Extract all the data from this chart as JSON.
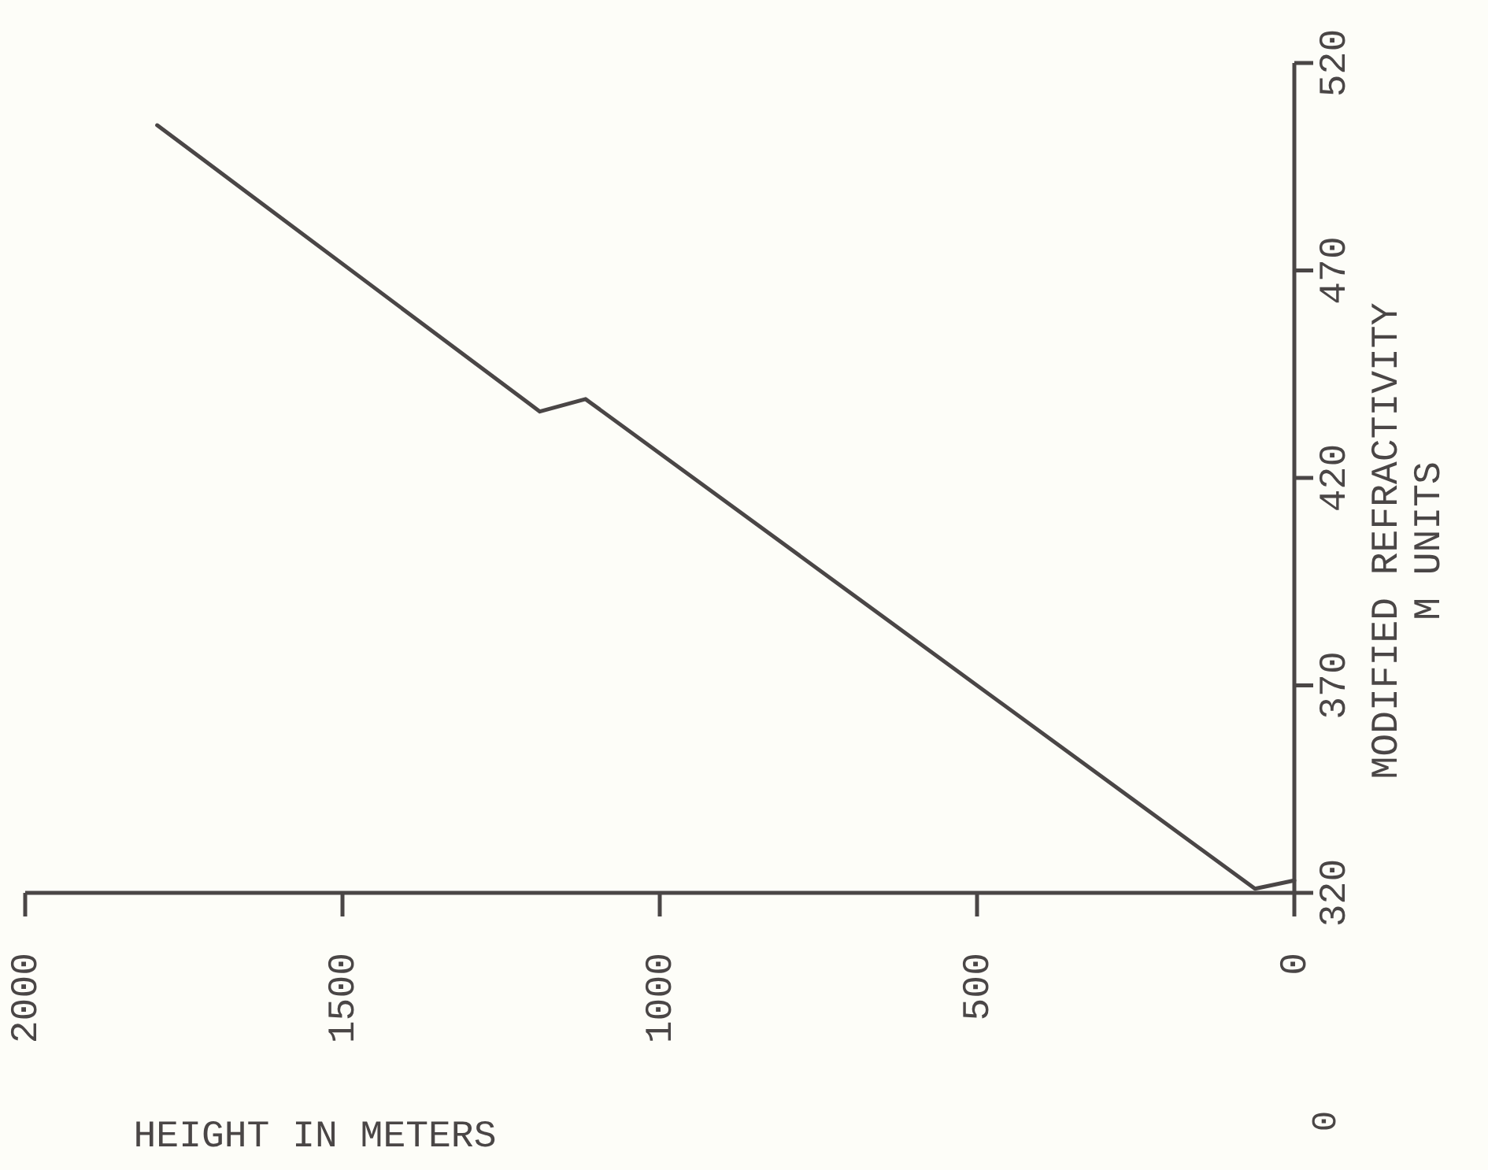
{
  "chart_data": {
    "type": "line",
    "xlabel": "HEIGHT IN METERS",
    "ylabel": "MODIFIED REFRACTIVITY\nM UNITS",
    "x": [
      0,
      62,
      1117,
      1189,
      1792
    ],
    "series": [
      {
        "color": "#4a4646",
        "values": [
          323,
          321,
          439,
          436,
          505
        ]
      }
    ],
    "xlim": [
      2000,
      0
    ],
    "xticks": [
      0,
      500,
      1000,
      1500,
      2000
    ],
    "ylim": [
      320,
      520
    ],
    "yticks": [
      320,
      370,
      420,
      470,
      520
    ],
    "grid": false,
    "marker": "none",
    "line_style": "solid",
    "annotations": [
      "0"
    ]
  }
}
